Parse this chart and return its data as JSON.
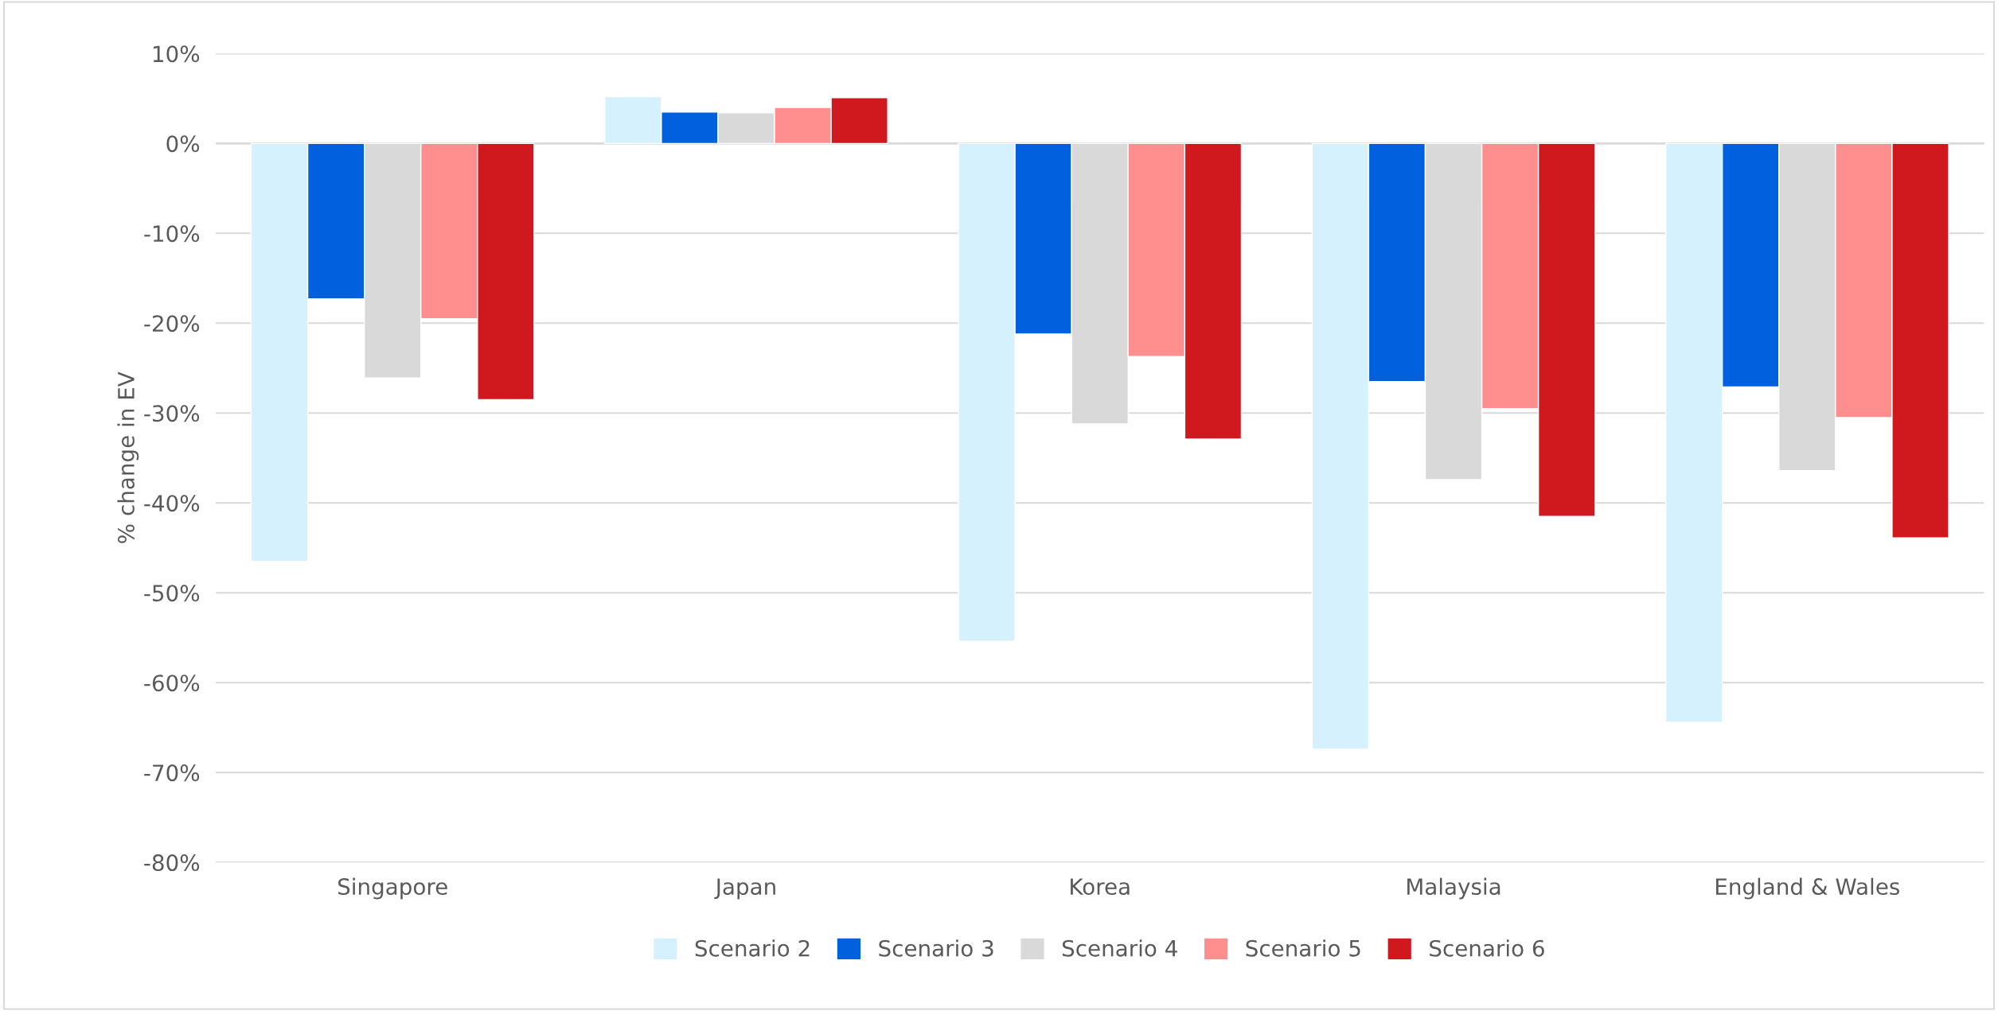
{
  "chart_data": {
    "type": "bar",
    "ylabel": "% change in EV",
    "categories": [
      "Singapore",
      "Japan",
      "Korea",
      "Malaysia",
      "England & Wales"
    ],
    "series": [
      {
        "name": "Scenario 2",
        "color": "#d4f1fd",
        "values": [
          -46.5,
          5.2,
          -55.4,
          -67.4,
          -64.4
        ]
      },
      {
        "name": "Scenario 3",
        "color": "#0060dd",
        "values": [
          -17.3,
          3.5,
          -21.2,
          -26.5,
          -27.1
        ]
      },
      {
        "name": "Scenario 4",
        "color": "#d9d9d9",
        "values": [
          -26.1,
          3.4,
          -31.2,
          -37.4,
          -36.4
        ]
      },
      {
        "name": "Scenario 5",
        "color": "#ff8f8f",
        "values": [
          -19.5,
          4.0,
          -23.7,
          -29.5,
          -30.5
        ]
      },
      {
        "name": "Scenario 6",
        "color": "#d0181f",
        "values": [
          -28.5,
          5.1,
          -32.9,
          -41.5,
          -43.9
        ]
      }
    ],
    "ylim": [
      -80,
      10
    ],
    "yticks": [
      {
        "value": -80,
        "label": "-80%"
      },
      {
        "value": -70,
        "label": "-70%"
      },
      {
        "value": -60,
        "label": "-60%"
      },
      {
        "value": -50,
        "label": "-50%"
      },
      {
        "value": -40,
        "label": "-40%"
      },
      {
        "value": -30,
        "label": "-30%"
      },
      {
        "value": -20,
        "label": "-20%"
      },
      {
        "value": -10,
        "label": "-10%"
      },
      {
        "value": 0,
        "label": "0%"
      },
      {
        "value": 10,
        "label": "10%"
      }
    ],
    "grid": "y",
    "legend": "bottom"
  }
}
